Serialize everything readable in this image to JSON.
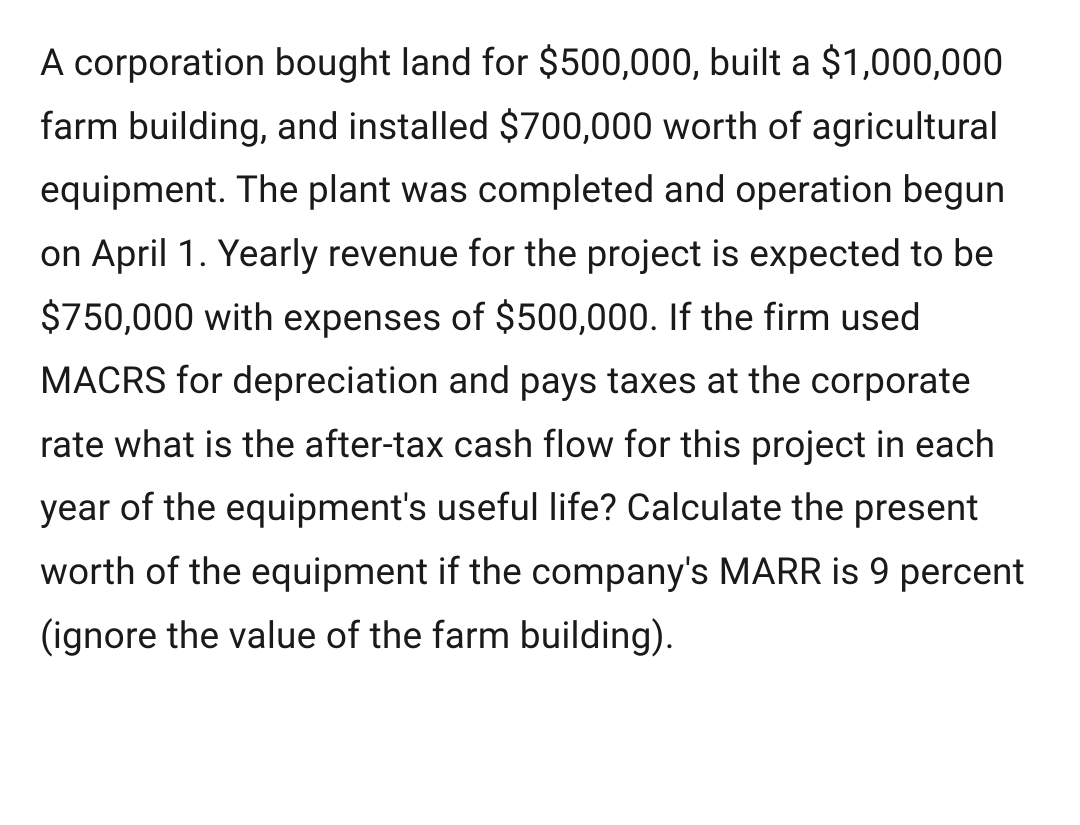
{
  "document": {
    "text": "A corporation bought land for $500,000, built a $1,000,000 farm building, and installed $700,000 worth of agricultural equipment. The plant was completed and operation begun on April 1. Yearly revenue for the project is expected to be $750,000 with expenses of $500,000. If the firm used MACRS for depreciation and pays taxes at the corporate rate what is the after-tax cash flow for this project in each year of the equipment's useful life? Calculate the present worth of the equipment if the company's MARR is 9 percent (ignore the value of the farm building).",
    "font_size": 37,
    "line_height": 1.72,
    "text_color": "#1a1a1a",
    "background_color": "#ffffff"
  }
}
